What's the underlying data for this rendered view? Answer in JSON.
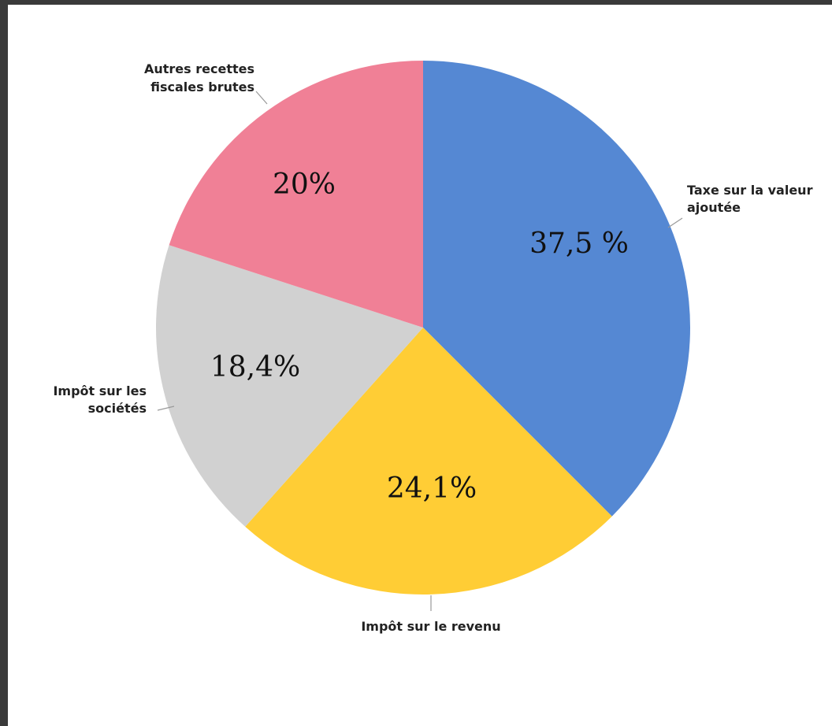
{
  "chart_data": {
    "type": "pie",
    "title": "",
    "start_angle_deg": 0,
    "direction": "clockwise",
    "slices": [
      {
        "label_lines": [
          "Taxe sur la valeur",
          "ajoutée"
        ],
        "value": 37.5,
        "value_label": "37,5 %",
        "color": "#5588d3"
      },
      {
        "label_lines": [
          "Impôt sur le revenu"
        ],
        "value": 24.1,
        "value_label": "24,1%",
        "color": "#ffcd35"
      },
      {
        "label_lines": [
          "Impôt sur les",
          "sociétés"
        ],
        "value": 18.4,
        "value_label": "18,4%",
        "color": "#d1d1d1"
      },
      {
        "label_lines": [
          "Autres recettes",
          "fiscales brutes"
        ],
        "value": 20,
        "value_label": "20%",
        "color": "#f08096"
      }
    ],
    "legend": "none",
    "grid": false
  }
}
